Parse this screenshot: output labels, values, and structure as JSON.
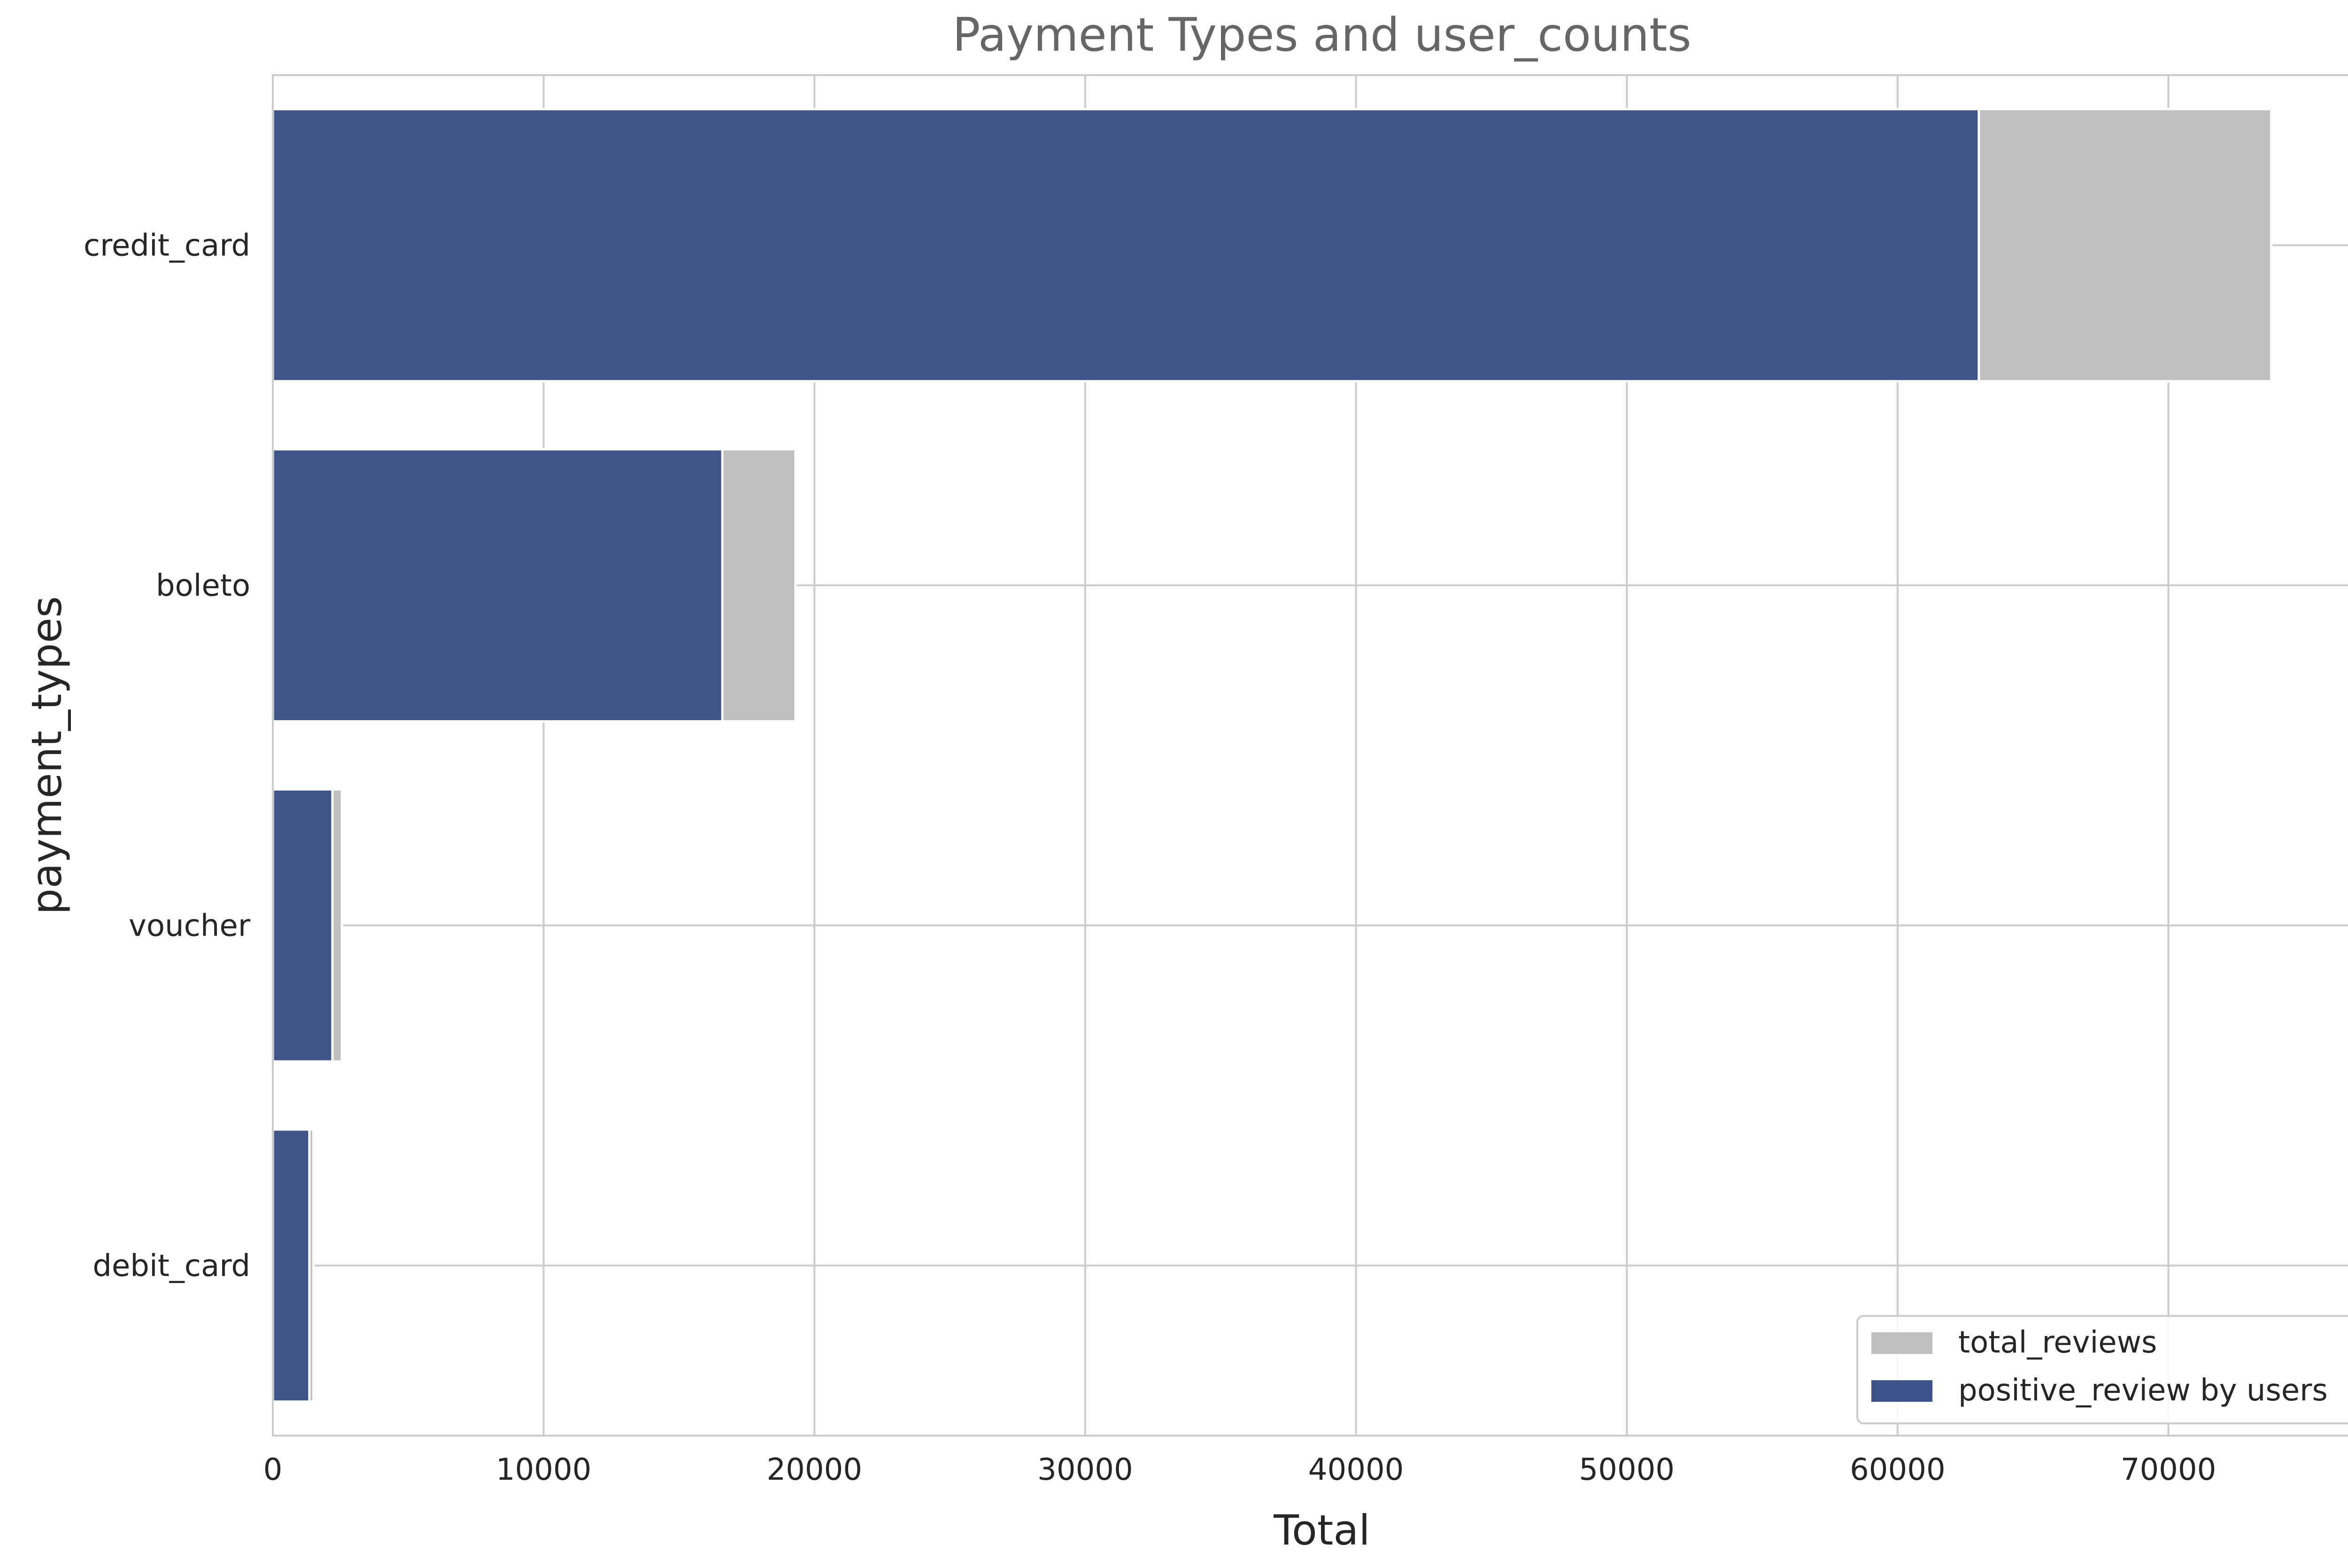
{
  "chart_data": {
    "type": "bar",
    "orientation": "horizontal",
    "title": "Payment Types and user_counts",
    "xlabel": "Total",
    "ylabel": "payment_types",
    "categories": [
      "credit_card",
      "boleto",
      "voucher",
      "debit_card"
    ],
    "series": [
      {
        "name": "total_reviews",
        "color": "#bfbfbf",
        "values": [
          73800,
          19300,
          2550,
          1500
        ]
      },
      {
        "name": "positive_review by users",
        "color": "#3d5289",
        "values": [
          63000,
          16600,
          2200,
          1350
        ]
      }
    ],
    "xlim": [
      0,
      77500
    ],
    "xticks": [
      0,
      10000,
      20000,
      30000,
      40000,
      50000,
      60000,
      70000
    ],
    "xtick_labels": [
      "0",
      "10000",
      "20000",
      "30000",
      "40000",
      "50000",
      "60000",
      "70000"
    ],
    "grid": true,
    "legend_position": "bottom-right"
  }
}
